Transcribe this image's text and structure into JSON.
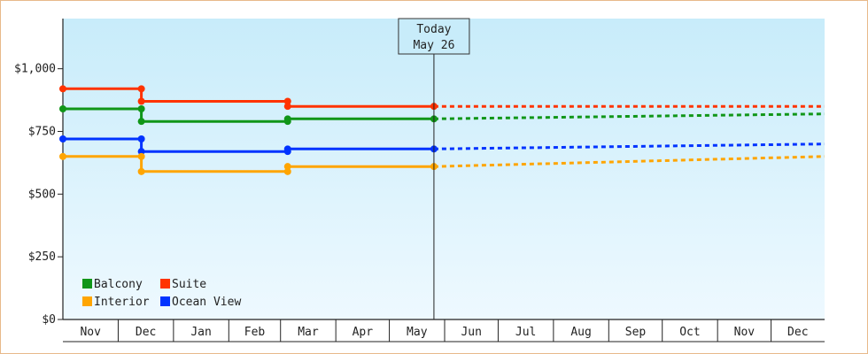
{
  "chart_data": {
    "type": "line",
    "title": "",
    "xlabel": "",
    "ylabel": "",
    "ylim": [
      0,
      1200
    ],
    "y_ticks": [
      {
        "value": 0,
        "label": "$0"
      },
      {
        "value": 250,
        "label": "$250"
      },
      {
        "value": 500,
        "label": "$500"
      },
      {
        "value": 750,
        "label": "$750"
      },
      {
        "value": 1000,
        "label": "$1,000"
      }
    ],
    "x_range": [
      "2023-10-31",
      "2024-12-31"
    ],
    "months": [
      {
        "label": "Nov",
        "start": "2023-11-01"
      },
      {
        "label": "Dec",
        "start": "2023-12-01"
      },
      {
        "label": "Jan",
        "start": "2024-01-01"
      },
      {
        "label": "Feb",
        "start": "2024-02-01"
      },
      {
        "label": "Mar",
        "start": "2024-03-01"
      },
      {
        "label": "Apr",
        "start": "2024-04-01"
      },
      {
        "label": "May",
        "start": "2024-05-01"
      },
      {
        "label": "Jun",
        "start": "2024-06-01"
      },
      {
        "label": "Jul",
        "start": "2024-07-01"
      },
      {
        "label": "Aug",
        "start": "2024-08-01"
      },
      {
        "label": "Sep",
        "start": "2024-09-01"
      },
      {
        "label": "Oct",
        "start": "2024-10-01"
      },
      {
        "label": "Nov",
        "start": "2024-11-01"
      },
      {
        "label": "Dec",
        "start": "2024-12-01"
      }
    ],
    "today": {
      "line1": "Today",
      "line2": "May 26",
      "date": "2024-05-26"
    },
    "legend": {
      "placement": "bottom-left"
    },
    "series": [
      {
        "name": "Suite",
        "color": "#ff3300",
        "points": [
          [
            "2023-10-31",
            920
          ],
          [
            "2023-12-14",
            920
          ],
          [
            "2023-12-14",
            870
          ],
          [
            "2024-03-05",
            870
          ],
          [
            "2024-03-05",
            850
          ],
          [
            "2024-05-26",
            850
          ]
        ],
        "forecast": [
          [
            "2024-05-26",
            850
          ],
          [
            "2024-12-31",
            850
          ]
        ]
      },
      {
        "name": "Balcony",
        "color": "#109618",
        "points": [
          [
            "2023-10-31",
            840
          ],
          [
            "2023-12-14",
            840
          ],
          [
            "2023-12-14",
            790
          ],
          [
            "2024-03-05",
            790
          ],
          [
            "2024-03-05",
            800
          ],
          [
            "2024-05-26",
            800
          ]
        ],
        "forecast": [
          [
            "2024-05-26",
            800
          ],
          [
            "2024-12-31",
            820
          ]
        ]
      },
      {
        "name": "Ocean View",
        "color": "#0033ff",
        "points": [
          [
            "2023-10-31",
            720
          ],
          [
            "2023-12-14",
            720
          ],
          [
            "2023-12-14",
            670
          ],
          [
            "2024-03-05",
            670
          ],
          [
            "2024-03-05",
            680
          ],
          [
            "2024-05-26",
            680
          ]
        ],
        "forecast": [
          [
            "2024-05-26",
            680
          ],
          [
            "2024-12-31",
            700
          ]
        ]
      },
      {
        "name": "Interior",
        "color": "#ffa500",
        "points": [
          [
            "2023-10-31",
            650
          ],
          [
            "2023-12-14",
            650
          ],
          [
            "2023-12-14",
            590
          ],
          [
            "2024-03-05",
            590
          ],
          [
            "2024-03-05",
            610
          ],
          [
            "2024-05-26",
            610
          ]
        ],
        "forecast": [
          [
            "2024-05-26",
            610
          ],
          [
            "2024-12-31",
            650
          ]
        ]
      }
    ],
    "legend_order": [
      "Balcony",
      "Suite",
      "Interior",
      "Ocean View"
    ]
  }
}
